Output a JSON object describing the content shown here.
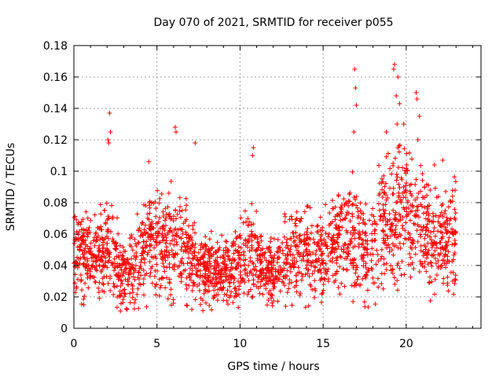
{
  "chart_data": {
    "type": "scatter",
    "title": "Day 070 of 2021, SRMTID for receiver p055",
    "xlabel": "GPS time / hours",
    "ylabel": "SRMTID / TECUs",
    "xlim": [
      0,
      24.5
    ],
    "ylim": [
      0,
      0.18
    ],
    "xticks": [
      0,
      5,
      10,
      15,
      20
    ],
    "xtick_labels": [
      "0",
      "5",
      "10",
      "15",
      "20"
    ],
    "yticks": [
      0,
      0.02,
      0.04,
      0.06,
      0.08,
      0.1,
      0.12,
      0.14,
      0.16,
      0.18
    ],
    "ytick_labels": [
      "0",
      "0.02",
      "0.04",
      "0.06",
      "0.08",
      "0.1",
      "0.12",
      "0.14",
      "0.16",
      "0.18"
    ],
    "grid": true,
    "marker": "plus",
    "color": "#ff0000",
    "data_span_hours": [
      0,
      23
    ],
    "baseline_trend": [
      {
        "x": 0.0,
        "y": 0.048
      },
      {
        "x": 0.5,
        "y": 0.045
      },
      {
        "x": 1.0,
        "y": 0.048
      },
      {
        "x": 1.5,
        "y": 0.046
      },
      {
        "x": 2.0,
        "y": 0.055
      },
      {
        "x": 2.5,
        "y": 0.045
      },
      {
        "x": 3.0,
        "y": 0.035
      },
      {
        "x": 3.5,
        "y": 0.038
      },
      {
        "x": 4.0,
        "y": 0.045
      },
      {
        "x": 4.5,
        "y": 0.058
      },
      {
        "x": 5.0,
        "y": 0.055
      },
      {
        "x": 5.5,
        "y": 0.052
      },
      {
        "x": 6.0,
        "y": 0.058
      },
      {
        "x": 6.5,
        "y": 0.056
      },
      {
        "x": 7.0,
        "y": 0.045
      },
      {
        "x": 7.5,
        "y": 0.04
      },
      {
        "x": 8.0,
        "y": 0.038
      },
      {
        "x": 8.5,
        "y": 0.036
      },
      {
        "x": 9.0,
        "y": 0.036
      },
      {
        "x": 9.5,
        "y": 0.04
      },
      {
        "x": 10.0,
        "y": 0.043
      },
      {
        "x": 10.5,
        "y": 0.047
      },
      {
        "x": 11.0,
        "y": 0.045
      },
      {
        "x": 11.5,
        "y": 0.036
      },
      {
        "x": 12.0,
        "y": 0.035
      },
      {
        "x": 12.5,
        "y": 0.04
      },
      {
        "x": 13.0,
        "y": 0.045
      },
      {
        "x": 13.5,
        "y": 0.048
      },
      {
        "x": 14.0,
        "y": 0.05
      },
      {
        "x": 14.5,
        "y": 0.044
      },
      {
        "x": 15.0,
        "y": 0.045
      },
      {
        "x": 15.5,
        "y": 0.052
      },
      {
        "x": 16.0,
        "y": 0.055
      },
      {
        "x": 16.5,
        "y": 0.057
      },
      {
        "x": 17.0,
        "y": 0.055
      },
      {
        "x": 17.5,
        "y": 0.05
      },
      {
        "x": 18.0,
        "y": 0.052
      },
      {
        "x": 18.5,
        "y": 0.065
      },
      {
        "x": 19.0,
        "y": 0.07
      },
      {
        "x": 19.5,
        "y": 0.078
      },
      {
        "x": 20.0,
        "y": 0.08
      },
      {
        "x": 20.5,
        "y": 0.068
      },
      {
        "x": 21.0,
        "y": 0.062
      },
      {
        "x": 21.5,
        "y": 0.058
      },
      {
        "x": 22.0,
        "y": 0.052
      },
      {
        "x": 22.5,
        "y": 0.055
      },
      {
        "x": 23.0,
        "y": 0.057
      }
    ],
    "notable_points": [
      {
        "x": 2.15,
        "y": 0.137
      },
      {
        "x": 2.2,
        "y": 0.125
      },
      {
        "x": 2.05,
        "y": 0.12
      },
      {
        "x": 2.1,
        "y": 0.118
      },
      {
        "x": 6.1,
        "y": 0.128
      },
      {
        "x": 6.15,
        "y": 0.125
      },
      {
        "x": 7.3,
        "y": 0.118
      },
      {
        "x": 10.8,
        "y": 0.115
      },
      {
        "x": 10.75,
        "y": 0.11
      },
      {
        "x": 16.9,
        "y": 0.165
      },
      {
        "x": 16.95,
        "y": 0.153
      },
      {
        "x": 17.0,
        "y": 0.142
      },
      {
        "x": 16.85,
        "y": 0.125
      },
      {
        "x": 18.8,
        "y": 0.125
      },
      {
        "x": 19.3,
        "y": 0.168
      },
      {
        "x": 19.25,
        "y": 0.165
      },
      {
        "x": 19.5,
        "y": 0.16
      },
      {
        "x": 19.4,
        "y": 0.148
      },
      {
        "x": 19.6,
        "y": 0.143
      },
      {
        "x": 19.45,
        "y": 0.13
      },
      {
        "x": 19.85,
        "y": 0.13
      },
      {
        "x": 20.6,
        "y": 0.15
      },
      {
        "x": 20.65,
        "y": 0.146
      },
      {
        "x": 20.8,
        "y": 0.135
      },
      {
        "x": 20.7,
        "y": 0.12
      },
      {
        "x": 22.2,
        "y": 0.107
      },
      {
        "x": 21.7,
        "y": 0.104
      },
      {
        "x": 2.8,
        "y": 0.011
      },
      {
        "x": 3.2,
        "y": 0.012
      },
      {
        "x": 7.1,
        "y": 0.012
      },
      {
        "x": 0.6,
        "y": 0.015
      },
      {
        "x": 11.7,
        "y": 0.018
      },
      {
        "x": 16.8,
        "y": 0.017
      },
      {
        "x": 19.2,
        "y": 0.035
      },
      {
        "x": 22.8,
        "y": 0.03
      }
    ]
  }
}
